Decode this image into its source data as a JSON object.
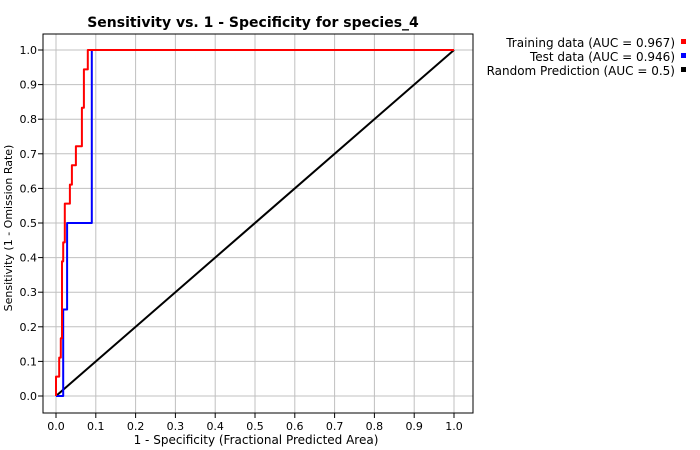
{
  "chart_data": {
    "type": "line",
    "title": "Sensitivity vs. 1 - Specificity for species_4",
    "xlabel": "1 - Specificity  (Fractional Predicted Area)",
    "ylabel": "Sensitivity (1 - Omission Rate)",
    "xlim": [
      0,
      1
    ],
    "ylim": [
      0,
      1
    ],
    "x_ticks": [
      "0.0",
      "0.1",
      "0.2",
      "0.3",
      "0.4",
      "0.5",
      "0.6",
      "0.7",
      "0.8",
      "0.9",
      "1.0"
    ],
    "y_ticks": [
      "0.0",
      "0.1",
      "0.2",
      "0.3",
      "0.4",
      "0.5",
      "0.6",
      "0.7",
      "0.8",
      "0.9",
      "1.0"
    ],
    "grid": true,
    "legend_position": "top-right",
    "series": [
      {
        "name": "Training data (AUC = 0.967)",
        "color": "#ff0000",
        "points": [
          [
            0.0,
            0.0
          ],
          [
            0.0,
            0.056
          ],
          [
            0.008,
            0.056
          ],
          [
            0.008,
            0.111
          ],
          [
            0.012,
            0.111
          ],
          [
            0.012,
            0.167
          ],
          [
            0.015,
            0.167
          ],
          [
            0.015,
            0.389
          ],
          [
            0.018,
            0.389
          ],
          [
            0.018,
            0.444
          ],
          [
            0.022,
            0.444
          ],
          [
            0.022,
            0.556
          ],
          [
            0.035,
            0.556
          ],
          [
            0.035,
            0.611
          ],
          [
            0.04,
            0.611
          ],
          [
            0.04,
            0.667
          ],
          [
            0.05,
            0.667
          ],
          [
            0.05,
            0.722
          ],
          [
            0.065,
            0.722
          ],
          [
            0.065,
            0.833
          ],
          [
            0.07,
            0.833
          ],
          [
            0.07,
            0.944
          ],
          [
            0.08,
            0.944
          ],
          [
            0.08,
            1.0
          ],
          [
            1.0,
            1.0
          ]
        ]
      },
      {
        "name": "Test data (AUC = 0.946)",
        "color": "#0000ff",
        "points": [
          [
            0.0,
            0.0
          ],
          [
            0.018,
            0.0
          ],
          [
            0.018,
            0.25
          ],
          [
            0.028,
            0.25
          ],
          [
            0.028,
            0.5
          ],
          [
            0.09,
            0.5
          ],
          [
            0.09,
            1.0
          ],
          [
            1.0,
            1.0
          ]
        ]
      },
      {
        "name": "Random Prediction (AUC = 0.5)",
        "color": "#000000",
        "points": [
          [
            0.0,
            0.0
          ],
          [
            1.0,
            1.0
          ]
        ]
      }
    ]
  }
}
